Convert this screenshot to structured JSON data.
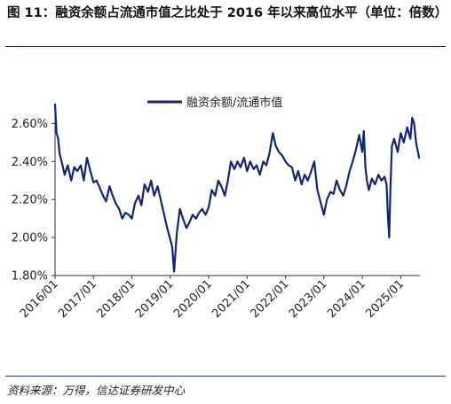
{
  "figure": {
    "title": "图 11：融资余额占流通市值之比处于 2016 年以来高位水平（单位：倍数）",
    "source": "资料来源：万得，信达证券研发中心"
  },
  "colors": {
    "series": "#13237a",
    "rule": "#1f2f6e",
    "axis": "#333333"
  },
  "chart_data": {
    "type": "line",
    "legend": {
      "position": "top-center",
      "entries": [
        "融资余额/流通市值"
      ]
    },
    "ylim": [
      1.8,
      2.7
    ],
    "yticks": [
      1.8,
      2.0,
      2.2,
      2.4,
      2.6
    ],
    "ytick_labels": [
      "1.80%",
      "2.00%",
      "2.20%",
      "2.40%",
      "2.60%"
    ],
    "xlim": [
      2016.0,
      2025.5
    ],
    "xticks": [
      2016,
      2017,
      2018,
      2019,
      2020,
      2021,
      2022,
      2023,
      2024,
      2025
    ],
    "xtick_labels": [
      "2016/01",
      "2017/01",
      "2018/01",
      "2019/01",
      "2020/01",
      "2021/01",
      "2022/01",
      "2023/01",
      "2024/01",
      "2025/01"
    ],
    "grid": false,
    "series": [
      {
        "name": "融资余额/流通市值",
        "unit": "%",
        "points": [
          [
            2016.0,
            2.7
          ],
          [
            2016.04,
            2.55
          ],
          [
            2016.08,
            2.52
          ],
          [
            2016.12,
            2.44
          ],
          [
            2016.17,
            2.4
          ],
          [
            2016.25,
            2.33
          ],
          [
            2016.33,
            2.38
          ],
          [
            2016.42,
            2.3
          ],
          [
            2016.5,
            2.37
          ],
          [
            2016.58,
            2.35
          ],
          [
            2016.67,
            2.38
          ],
          [
            2016.75,
            2.3
          ],
          [
            2016.83,
            2.42
          ],
          [
            2016.92,
            2.35
          ],
          [
            2017.0,
            2.29
          ],
          [
            2017.08,
            2.3
          ],
          [
            2017.17,
            2.26
          ],
          [
            2017.25,
            2.22
          ],
          [
            2017.33,
            2.19
          ],
          [
            2017.42,
            2.27
          ],
          [
            2017.5,
            2.22
          ],
          [
            2017.58,
            2.18
          ],
          [
            2017.67,
            2.15
          ],
          [
            2017.75,
            2.1
          ],
          [
            2017.83,
            2.13
          ],
          [
            2017.92,
            2.12
          ],
          [
            2018.0,
            2.1
          ],
          [
            2018.08,
            2.18
          ],
          [
            2018.17,
            2.22
          ],
          [
            2018.25,
            2.17
          ],
          [
            2018.33,
            2.28
          ],
          [
            2018.42,
            2.24
          ],
          [
            2018.5,
            2.3
          ],
          [
            2018.58,
            2.22
          ],
          [
            2018.67,
            2.27
          ],
          [
            2018.75,
            2.2
          ],
          [
            2018.83,
            2.13
          ],
          [
            2018.92,
            2.05
          ],
          [
            2019.0,
            1.99
          ],
          [
            2019.05,
            1.95
          ],
          [
            2019.1,
            1.82
          ],
          [
            2019.17,
            2.02
          ],
          [
            2019.25,
            2.15
          ],
          [
            2019.33,
            2.1
          ],
          [
            2019.42,
            2.05
          ],
          [
            2019.5,
            2.08
          ],
          [
            2019.58,
            2.12
          ],
          [
            2019.67,
            2.1
          ],
          [
            2019.75,
            2.13
          ],
          [
            2019.83,
            2.15
          ],
          [
            2019.92,
            2.12
          ],
          [
            2020.0,
            2.16
          ],
          [
            2020.08,
            2.25
          ],
          [
            2020.17,
            2.22
          ],
          [
            2020.25,
            2.3
          ],
          [
            2020.33,
            2.27
          ],
          [
            2020.42,
            2.22
          ],
          [
            2020.5,
            2.3
          ],
          [
            2020.58,
            2.4
          ],
          [
            2020.67,
            2.36
          ],
          [
            2020.75,
            2.4
          ],
          [
            2020.83,
            2.37
          ],
          [
            2020.92,
            2.42
          ],
          [
            2021.0,
            2.35
          ],
          [
            2021.08,
            2.4
          ],
          [
            2021.17,
            2.36
          ],
          [
            2021.25,
            2.38
          ],
          [
            2021.33,
            2.33
          ],
          [
            2021.42,
            2.4
          ],
          [
            2021.5,
            2.38
          ],
          [
            2021.58,
            2.44
          ],
          [
            2021.67,
            2.55
          ],
          [
            2021.75,
            2.48
          ],
          [
            2021.83,
            2.45
          ],
          [
            2021.92,
            2.43
          ],
          [
            2022.0,
            2.4
          ],
          [
            2022.08,
            2.38
          ],
          [
            2022.17,
            2.37
          ],
          [
            2022.25,
            2.3
          ],
          [
            2022.33,
            2.35
          ],
          [
            2022.42,
            2.28
          ],
          [
            2022.5,
            2.33
          ],
          [
            2022.58,
            2.3
          ],
          [
            2022.67,
            2.35
          ],
          [
            2022.75,
            2.4
          ],
          [
            2022.83,
            2.25
          ],
          [
            2022.92,
            2.18
          ],
          [
            2023.0,
            2.12
          ],
          [
            2023.08,
            2.2
          ],
          [
            2023.17,
            2.24
          ],
          [
            2023.25,
            2.23
          ],
          [
            2023.33,
            2.3
          ],
          [
            2023.42,
            2.25
          ],
          [
            2023.5,
            2.22
          ],
          [
            2023.58,
            2.27
          ],
          [
            2023.67,
            2.35
          ],
          [
            2023.75,
            2.4
          ],
          [
            2023.83,
            2.46
          ],
          [
            2023.92,
            2.54
          ],
          [
            2024.0,
            2.45
          ],
          [
            2024.04,
            2.56
          ],
          [
            2024.08,
            2.37
          ],
          [
            2024.12,
            2.3
          ],
          [
            2024.17,
            2.25
          ],
          [
            2024.25,
            2.31
          ],
          [
            2024.33,
            2.28
          ],
          [
            2024.42,
            2.33
          ],
          [
            2024.5,
            2.3
          ],
          [
            2024.58,
            2.32
          ],
          [
            2024.63,
            2.28
          ],
          [
            2024.67,
            2.1
          ],
          [
            2024.7,
            2.0
          ],
          [
            2024.73,
            2.25
          ],
          [
            2024.77,
            2.48
          ],
          [
            2024.83,
            2.52
          ],
          [
            2024.92,
            2.45
          ],
          [
            2025.0,
            2.55
          ],
          [
            2025.08,
            2.5
          ],
          [
            2025.17,
            2.58
          ],
          [
            2025.25,
            2.52
          ],
          [
            2025.3,
            2.63
          ],
          [
            2025.35,
            2.6
          ],
          [
            2025.4,
            2.5
          ],
          [
            2025.45,
            2.45
          ],
          [
            2025.48,
            2.42
          ]
        ]
      }
    ]
  }
}
